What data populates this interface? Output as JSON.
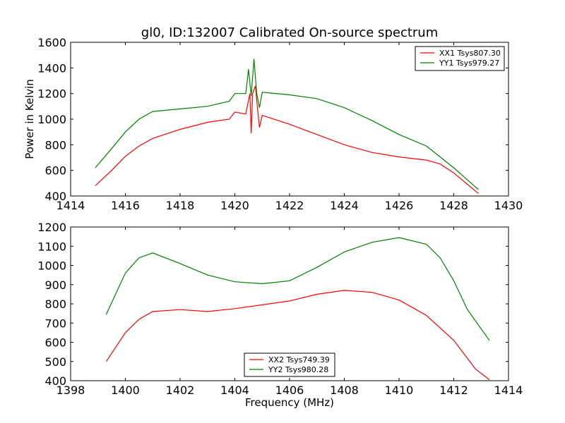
{
  "chart_data": [
    {
      "type": "line",
      "title": "gl0, ID:132007 Calibrated On-source spectrum",
      "xlabel": "",
      "ylabel": "Power in Kelvin",
      "xlim": [
        1414,
        1430
      ],
      "ylim": [
        400,
        1600
      ],
      "xticks": [
        "1414",
        "1416",
        "1418",
        "1420",
        "1422",
        "1424",
        "1426",
        "1428",
        "1430"
      ],
      "yticks": [
        "400",
        "600",
        "800",
        "1000",
        "1200",
        "1400",
        "1600"
      ],
      "legend_position": "top-right",
      "series": [
        {
          "name": "XX1 Tsys807.30",
          "color": "#ff0000",
          "x": [
            1414.9,
            1415.5,
            1416,
            1416.5,
            1417,
            1418,
            1419,
            1419.8,
            1420,
            1420.4,
            1420.55,
            1420.6,
            1420.65,
            1420.75,
            1420.8,
            1420.9,
            1421,
            1422,
            1423,
            1424,
            1425,
            1426,
            1427,
            1427.5,
            1428,
            1428.9
          ],
          "y": [
            480,
            600,
            710,
            790,
            850,
            920,
            975,
            1000,
            1055,
            1040,
            1200,
            890,
            1200,
            1260,
            1150,
            935,
            1030,
            960,
            880,
            800,
            740,
            705,
            680,
            650,
            580,
            420
          ]
        },
        {
          "name": "YY1 Tsys979.27",
          "color": "#008000",
          "x": [
            1414.9,
            1415.5,
            1416,
            1416.5,
            1417,
            1418,
            1419,
            1419.8,
            1420,
            1420.4,
            1420.5,
            1420.6,
            1420.7,
            1420.8,
            1420.9,
            1421,
            1422,
            1423,
            1424,
            1425,
            1426,
            1427,
            1428,
            1428.9
          ],
          "y": [
            620,
            770,
            900,
            1000,
            1060,
            1080,
            1100,
            1140,
            1200,
            1200,
            1390,
            1180,
            1470,
            1200,
            1090,
            1210,
            1190,
            1160,
            1090,
            990,
            880,
            790,
            620,
            450
          ]
        }
      ]
    },
    {
      "type": "line",
      "title": "",
      "xlabel": "Frequency (MHz)",
      "ylabel": "",
      "xlim": [
        1398,
        1414
      ],
      "ylim": [
        400,
        1200
      ],
      "xticks": [
        "1398",
        "1400",
        "1402",
        "1404",
        "1406",
        "1408",
        "1410",
        "1412",
        "1414"
      ],
      "yticks": [
        "400",
        "500",
        "600",
        "700",
        "800",
        "900",
        "1000",
        "1100",
        "1200"
      ],
      "legend_position": "bottom-center",
      "series": [
        {
          "name": "XX2 Tsys749.39",
          "color": "#ff0000",
          "x": [
            1399.3,
            1400,
            1400.5,
            1401,
            1402,
            1403,
            1404,
            1405,
            1406,
            1407,
            1408,
            1409,
            1410,
            1411,
            1412,
            1412.8,
            1413.3
          ],
          "y": [
            500,
            650,
            720,
            760,
            770,
            760,
            775,
            795,
            815,
            850,
            870,
            860,
            820,
            740,
            610,
            460,
            405
          ]
        },
        {
          "name": "YY2 Tsys980.28",
          "color": "#008000",
          "x": [
            1399.3,
            1400,
            1400.5,
            1401,
            1402,
            1403,
            1404,
            1405,
            1406,
            1407,
            1408,
            1409,
            1410,
            1411,
            1411.5,
            1412,
            1412.5,
            1413.3
          ],
          "y": [
            745,
            960,
            1040,
            1065,
            1010,
            950,
            915,
            905,
            920,
            990,
            1070,
            1120,
            1145,
            1110,
            1040,
            920,
            770,
            610
          ]
        }
      ]
    }
  ]
}
